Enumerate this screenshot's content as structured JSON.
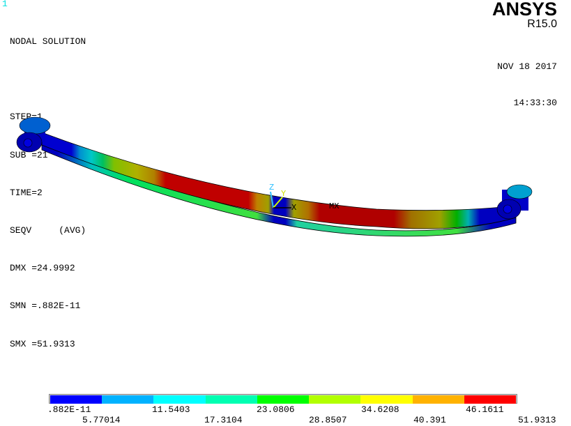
{
  "window_number": "1",
  "info": [
    "NODAL SOLUTION",
    "",
    "STEP=1",
    "SUB =21",
    "TIME=2",
    "SEQV     (AVG)",
    "DMX =24.9992",
    "SMN =.882E-11",
    "SMX =51.9313"
  ],
  "brand": {
    "logo": "ANSYS",
    "version": "R15.0"
  },
  "date": "NOV 18 2017",
  "time": "14:33:30",
  "triad": {
    "z": "Z",
    "y": "Y",
    "x": "X"
  },
  "max_marker": "MX",
  "legend": {
    "colors": [
      "#0000FF",
      "#00B2FF",
      "#00FFFF",
      "#00FFB2",
      "#00FF00",
      "#B2FF00",
      "#FFFF00",
      "#FFB200",
      "#FF0000"
    ],
    "labels": [
      ".882E-11",
      "5.77014",
      "11.5403",
      "17.3104",
      "23.0806",
      "28.8507",
      "34.6208",
      "40.391",
      "46.1611",
      "51.9313"
    ]
  }
}
